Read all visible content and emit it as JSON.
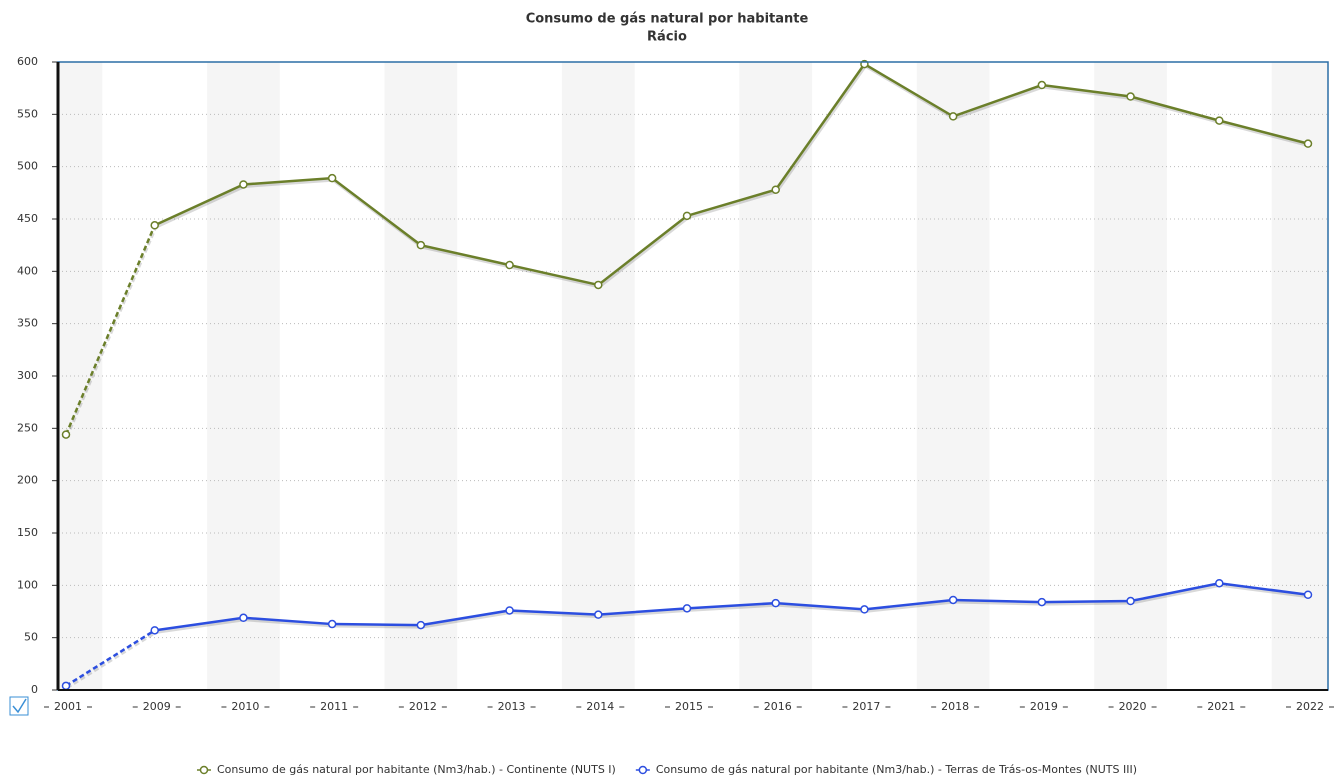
{
  "chart_data": {
    "type": "line",
    "title": "Consumo de gás natural por habitante",
    "subtitle": "Rácio",
    "categories": [
      "2001",
      "2009",
      "2010",
      "2011",
      "2012",
      "2013",
      "2014",
      "2015",
      "2016",
      "2017",
      "2018",
      "2019",
      "2020",
      "2021",
      "2022"
    ],
    "series": [
      {
        "name": "Consumo de gás natural por habitante (Nm3/hab.) - Continente (NUTS I)",
        "color": "#6b7f2a",
        "values": [
          244,
          444,
          483,
          489,
          425,
          406,
          387,
          453,
          478,
          598,
          548,
          578,
          567,
          544,
          522
        ]
      },
      {
        "name": "Consumo de gás natural por habitante (Nm3/hab.) - Terras de Trás-os-Montes (NUTS III)",
        "color": "#2c4ee0",
        "values": [
          4,
          57,
          69,
          63,
          62,
          76,
          72,
          78,
          83,
          77,
          86,
          84,
          85,
          102,
          91
        ]
      }
    ],
    "ylim": [
      0,
      600
    ],
    "yticks": [
      0,
      50,
      100,
      150,
      200,
      250,
      300,
      350,
      400,
      450,
      500,
      550,
      600
    ],
    "grid": true
  }
}
